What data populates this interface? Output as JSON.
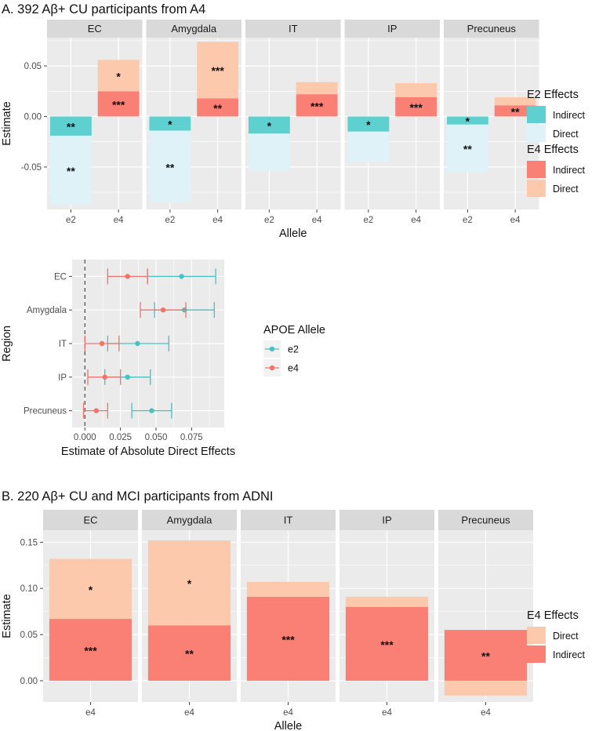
{
  "figure": {
    "panel_a_title": "A. 392 Aβ+ CU participants from A4",
    "panel_b_title": "B. 220 Aβ+ CU and MCI participants from ADNI"
  },
  "colors": {
    "e2_indirect": "#5fd0d0",
    "e2_direct": "#dff2f8",
    "e4_indirect": "#fa7f74",
    "e4_direct": "#fcc9ac",
    "e2_point": "#45c2c2",
    "e4_point": "#f4726a",
    "panel_bg": "#ebebeb",
    "strip_bg": "#d9d9d9",
    "grid": "#ffffff"
  },
  "chart_data": [
    {
      "id": "A-top",
      "type": "bar",
      "subtype": "stacked_faceted",
      "facets": [
        "EC",
        "Amygdala",
        "IT",
        "IP",
        "Precuneus"
      ],
      "categories": [
        "e2",
        "e4"
      ],
      "xlabel": "Allele",
      "ylabel": "Estimate",
      "ylim": [
        -0.092,
        0.078
      ],
      "yticks": [
        -0.05,
        0.0,
        0.05
      ],
      "ytick_labels": [
        "-0.05",
        "0.00",
        "0.05"
      ],
      "legend": [
        {
          "title": "E2 Effects",
          "items": [
            "Indirect",
            "Direct"
          ]
        },
        {
          "title": "E4 Effects",
          "items": [
            "Indirect",
            "Direct"
          ]
        }
      ],
      "legend_position": "right",
      "bars": [
        {
          "facet": "EC",
          "allele": "e2",
          "effect": "Indirect",
          "ymin": -0.019,
          "ymax": 0.0,
          "label": "**"
        },
        {
          "facet": "EC",
          "allele": "e2",
          "effect": "Direct",
          "ymin": -0.087,
          "ymax": -0.019,
          "label": "**"
        },
        {
          "facet": "EC",
          "allele": "e4",
          "effect": "Indirect",
          "ymin": 0.0,
          "ymax": 0.025,
          "label": "***"
        },
        {
          "facet": "EC",
          "allele": "e4",
          "effect": "Direct",
          "ymin": 0.025,
          "ymax": 0.056,
          "label": "*"
        },
        {
          "facet": "Amygdala",
          "allele": "e2",
          "effect": "Indirect",
          "ymin": -0.014,
          "ymax": 0.0,
          "label": "*"
        },
        {
          "facet": "Amygdala",
          "allele": "e2",
          "effect": "Direct",
          "ymin": -0.085,
          "ymax": -0.014,
          "label": "**"
        },
        {
          "facet": "Amygdala",
          "allele": "e4",
          "effect": "Indirect",
          "ymin": 0.0,
          "ymax": 0.018,
          "label": "**"
        },
        {
          "facet": "Amygdala",
          "allele": "e4",
          "effect": "Direct",
          "ymin": 0.018,
          "ymax": 0.074,
          "label": "***"
        },
        {
          "facet": "IT",
          "allele": "e2",
          "effect": "Indirect",
          "ymin": -0.017,
          "ymax": 0.0,
          "label": "*"
        },
        {
          "facet": "IT",
          "allele": "e2",
          "effect": "Direct",
          "ymin": -0.054,
          "ymax": -0.017,
          "label": ""
        },
        {
          "facet": "IT",
          "allele": "e4",
          "effect": "Indirect",
          "ymin": 0.0,
          "ymax": 0.022,
          "label": "***"
        },
        {
          "facet": "IT",
          "allele": "e4",
          "effect": "Direct",
          "ymin": 0.022,
          "ymax": 0.034,
          "label": ""
        },
        {
          "facet": "IP",
          "allele": "e2",
          "effect": "Indirect",
          "ymin": -0.015,
          "ymax": 0.0,
          "label": "*"
        },
        {
          "facet": "IP",
          "allele": "e2",
          "effect": "Direct",
          "ymin": -0.045,
          "ymax": -0.015,
          "label": ""
        },
        {
          "facet": "IP",
          "allele": "e4",
          "effect": "Indirect",
          "ymin": 0.0,
          "ymax": 0.019,
          "label": "***"
        },
        {
          "facet": "IP",
          "allele": "e4",
          "effect": "Direct",
          "ymin": 0.019,
          "ymax": 0.033,
          "label": ""
        },
        {
          "facet": "Precuneus",
          "allele": "e2",
          "effect": "Indirect",
          "ymin": -0.008,
          "ymax": 0.0,
          "label": "*"
        },
        {
          "facet": "Precuneus",
          "allele": "e2",
          "effect": "Direct",
          "ymin": -0.055,
          "ymax": -0.008,
          "label": "**"
        },
        {
          "facet": "Precuneus",
          "allele": "e4",
          "effect": "Indirect",
          "ymin": 0.0,
          "ymax": 0.011,
          "label": "**"
        },
        {
          "facet": "Precuneus",
          "allele": "e4",
          "effect": "Direct",
          "ymin": 0.011,
          "ymax": 0.019,
          "label": ""
        }
      ]
    },
    {
      "id": "A-forest",
      "type": "scatter",
      "subtype": "forest_errorbar",
      "categories": [
        "EC",
        "Amygdala",
        "IT",
        "IP",
        "Precuneus"
      ],
      "xlabel": "Estimate of Absolute Direct Effects",
      "ylabel": "Region",
      "xlim": [
        -0.009,
        0.098
      ],
      "xticks": [
        0.0,
        0.025,
        0.05,
        0.075
      ],
      "xtick_labels": [
        "0.000",
        "0.025",
        "0.050",
        "0.075"
      ],
      "reference_line": 0.0,
      "legend": {
        "title": "APOE Allele",
        "items": [
          "e2",
          "e4"
        ]
      },
      "series": [
        {
          "name": "e2",
          "points": [
            {
              "region": "EC",
              "est": 0.068,
              "lo": 0.044,
              "hi": 0.092
            },
            {
              "region": "Amygdala",
              "est": 0.07,
              "lo": 0.049,
              "hi": 0.091
            },
            {
              "region": "IT",
              "est": 0.037,
              "lo": 0.016,
              "hi": 0.059
            },
            {
              "region": "IP",
              "est": 0.03,
              "lo": 0.014,
              "hi": 0.046
            },
            {
              "region": "Precuneus",
              "est": 0.047,
              "lo": 0.033,
              "hi": 0.061
            }
          ]
        },
        {
          "name": "e4",
          "points": [
            {
              "region": "EC",
              "est": 0.03,
              "lo": 0.016,
              "hi": 0.044
            },
            {
              "region": "Amygdala",
              "est": 0.055,
              "lo": 0.039,
              "hi": 0.071
            },
            {
              "region": "IT",
              "est": 0.012,
              "lo": 0.0,
              "hi": 0.024
            },
            {
              "region": "IP",
              "est": 0.014,
              "lo": 0.002,
              "hi": 0.025
            },
            {
              "region": "Precuneus",
              "est": 0.008,
              "lo": -0.001,
              "hi": 0.016
            }
          ]
        }
      ]
    },
    {
      "id": "B",
      "type": "bar",
      "subtype": "stacked_faceted",
      "facets": [
        "EC",
        "Amygdala",
        "IT",
        "IP",
        "Precuneus"
      ],
      "categories": [
        "e4"
      ],
      "xlabel": "Allele",
      "ylabel": "Estimate",
      "ylim": [
        -0.023,
        0.163
      ],
      "yticks": [
        0.0,
        0.05,
        0.1,
        0.15
      ],
      "ytick_labels": [
        "0.00",
        "0.05",
        "0.10",
        "0.15"
      ],
      "legend": [
        {
          "title": "E4 Effects",
          "items": [
            "Direct",
            "Indirect"
          ]
        }
      ],
      "legend_position": "right",
      "bars": [
        {
          "facet": "EC",
          "allele": "e4",
          "effect": "Indirect",
          "ymin": 0.0,
          "ymax": 0.067,
          "label": "***"
        },
        {
          "facet": "EC",
          "allele": "e4",
          "effect": "Direct",
          "ymin": 0.067,
          "ymax": 0.132,
          "label": "*"
        },
        {
          "facet": "Amygdala",
          "allele": "e4",
          "effect": "Indirect",
          "ymin": 0.0,
          "ymax": 0.06,
          "label": "**"
        },
        {
          "facet": "Amygdala",
          "allele": "e4",
          "effect": "Direct",
          "ymin": 0.06,
          "ymax": 0.152,
          "label": "*"
        },
        {
          "facet": "IT",
          "allele": "e4",
          "effect": "Indirect",
          "ymin": 0.0,
          "ymax": 0.091,
          "label": "***"
        },
        {
          "facet": "IT",
          "allele": "e4",
          "effect": "Direct",
          "ymin": 0.091,
          "ymax": 0.107,
          "label": ""
        },
        {
          "facet": "IP",
          "allele": "e4",
          "effect": "Indirect",
          "ymin": 0.0,
          "ymax": 0.08,
          "label": "***"
        },
        {
          "facet": "IP",
          "allele": "e4",
          "effect": "Direct",
          "ymin": 0.08,
          "ymax": 0.091,
          "label": ""
        },
        {
          "facet": "Precuneus",
          "allele": "e4",
          "effect": "Indirect",
          "ymin": 0.0,
          "ymax": 0.055,
          "label": "**"
        },
        {
          "facet": "Precuneus",
          "allele": "e4",
          "effect": "Direct",
          "ymin": -0.016,
          "ymax": 0.0,
          "label": ""
        }
      ]
    }
  ]
}
